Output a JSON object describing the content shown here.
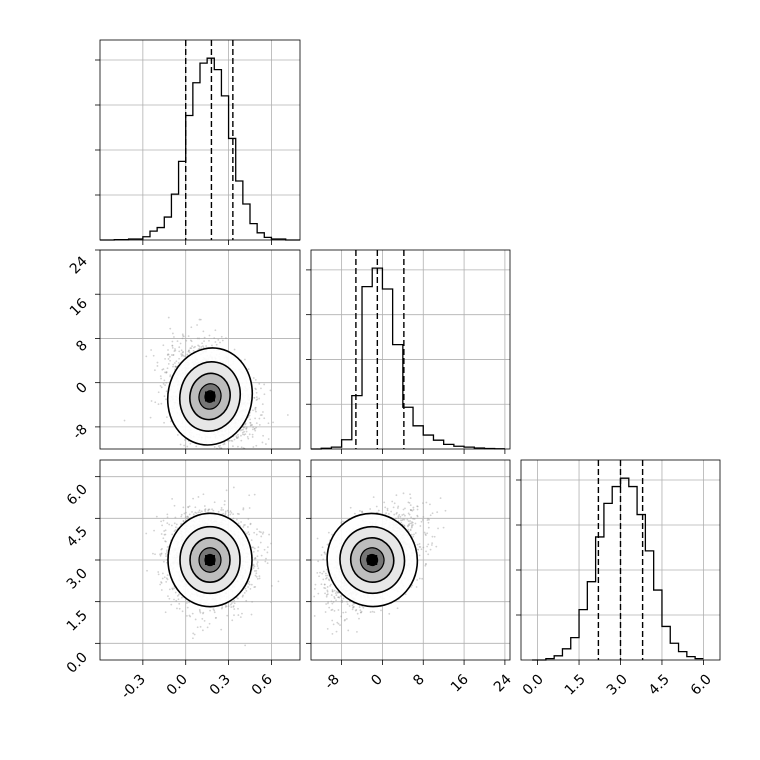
{
  "figure": {
    "type": "corner-plot",
    "grid": true
  },
  "colors": {
    "ink": "#000000",
    "scatter": "#9a9a9a",
    "grid": "#b0b0b0",
    "hist_fill": "#4d4d4d"
  },
  "chart_data": [
    {
      "panel": "hist-param-0",
      "type": "bar",
      "bin_edges": [
        -0.6,
        -0.5,
        -0.4,
        -0.3,
        -0.25,
        -0.2,
        -0.15,
        -0.1,
        -0.05,
        0.0,
        0.05,
        0.1,
        0.15,
        0.2,
        0.25,
        0.3,
        0.35,
        0.4,
        0.45,
        0.5,
        0.55,
        0.6,
        0.7,
        0.8
      ],
      "values": [
        0,
        1,
        3,
        10,
        27,
        38,
        70,
        140,
        240,
        380,
        480,
        540,
        555,
        520,
        440,
        310,
        180,
        110,
        50,
        22,
        8,
        3,
        0
      ],
      "quantiles": [
        0.0,
        0.18,
        0.33
      ],
      "xlim": [
        -0.6,
        0.8
      ],
      "xticks": [
        "-0.3",
        "0.0",
        "0.3",
        "0.6"
      ]
    },
    {
      "panel": "hist-param-1",
      "type": "bar",
      "bin_edges": [
        -14,
        -12,
        -10,
        -8,
        -6,
        -4,
        -2,
        0,
        2,
        4,
        6,
        8,
        10,
        12,
        14,
        16,
        18,
        20,
        22,
        24
      ],
      "values": [
        0,
        3,
        8,
        40,
        230,
        700,
        780,
        690,
        450,
        180,
        100,
        60,
        38,
        20,
        12,
        8,
        4,
        2,
        1
      ],
      "quantiles": [
        -5.2,
        -1.0,
        4.2
      ],
      "xlim": [
        -14,
        25
      ],
      "ylim": [
        -12,
        24
      ],
      "xticks": [
        "-8",
        "0",
        "8",
        "16",
        "24"
      ],
      "yticks": [
        "-8",
        "0",
        "8",
        "16",
        "24"
      ]
    },
    {
      "panel": "hist-param-2",
      "type": "bar",
      "bin_edges": [
        -0.2,
        0.3,
        0.6,
        0.9,
        1.2,
        1.5,
        1.8,
        2.1,
        2.4,
        2.7,
        3.0,
        3.3,
        3.6,
        3.9,
        4.2,
        4.5,
        4.8,
        5.1,
        5.4,
        5.7,
        6.0
      ],
      "values": [
        0,
        5,
        15,
        40,
        80,
        180,
        280,
        440,
        560,
        620,
        650,
        620,
        520,
        390,
        250,
        120,
        60,
        30,
        12,
        5
      ],
      "quantiles": [
        2.2,
        3.0,
        3.8
      ],
      "xlim": [
        -0.6,
        6.6
      ],
      "ylim": [
        -0.6,
        6.6
      ],
      "xticks": [
        "0.0",
        "1.5",
        "3.0",
        "4.5",
        "6.0"
      ],
      "yticks": [
        "0.0",
        "1.5",
        "3.0",
        "4.5",
        "6.0"
      ]
    },
    {
      "panel": "scatter-param0-vs-param1",
      "type": "scatter",
      "center": [
        0.17,
        -2.5
      ],
      "spread": [
        0.14,
        4.2
      ],
      "correlation": -0.3
    },
    {
      "panel": "scatter-param0-vs-param2",
      "type": "scatter",
      "center": [
        0.17,
        3.0
      ],
      "spread": [
        0.14,
        0.8
      ],
      "correlation": 0.0
    },
    {
      "panel": "scatter-param1-vs-param2",
      "type": "scatter",
      "center": [
        -2.0,
        3.0
      ],
      "spread": [
        4.2,
        0.8
      ],
      "correlation": 0.45
    }
  ]
}
